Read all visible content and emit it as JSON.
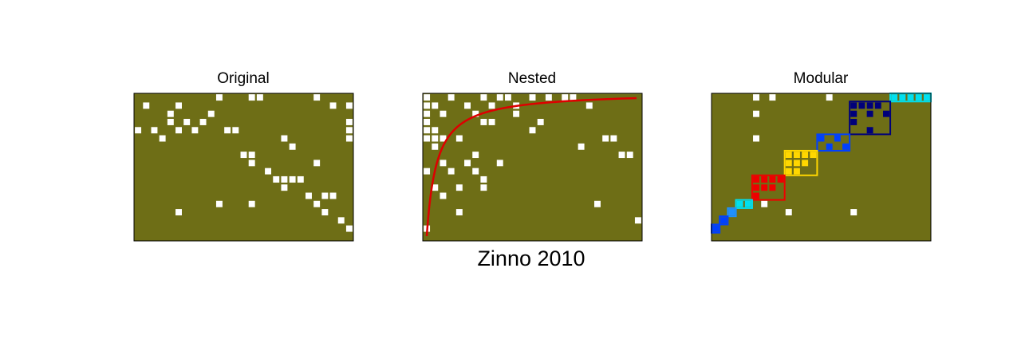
{
  "suptitle": "Zinno 2010",
  "colors": {
    "background": "#6e6e16",
    "cell": "#ffffff",
    "frame": "#000000",
    "nested_curve": "#dd0000",
    "module_cyan": "#00e0f0",
    "module_lightblue": "#1e90ff",
    "module_blue": "#0040ff",
    "module_red": "#ee0000",
    "module_yellow": "#ffd700",
    "module_navy": "#00007a"
  },
  "chart_data": [
    {
      "type": "heatmap",
      "title": "Original",
      "n_rows": 18,
      "n_cols": 27,
      "cells": [
        [
          0,
          10
        ],
        [
          0,
          14
        ],
        [
          0,
          15
        ],
        [
          0,
          22
        ],
        [
          1,
          1
        ],
        [
          1,
          5
        ],
        [
          1,
          24
        ],
        [
          1,
          26
        ],
        [
          2,
          4
        ],
        [
          2,
          9
        ],
        [
          3,
          4
        ],
        [
          3,
          6
        ],
        [
          3,
          8
        ],
        [
          3,
          26
        ],
        [
          4,
          0
        ],
        [
          4,
          2
        ],
        [
          4,
          5
        ],
        [
          4,
          7
        ],
        [
          4,
          11
        ],
        [
          4,
          12
        ],
        [
          4,
          26
        ],
        [
          5,
          3
        ],
        [
          5,
          18
        ],
        [
          5,
          26
        ],
        [
          6,
          19
        ],
        [
          7,
          13
        ],
        [
          7,
          14
        ],
        [
          8,
          22
        ],
        [
          8,
          14
        ],
        [
          9,
          16
        ],
        [
          10,
          17
        ],
        [
          10,
          18
        ],
        [
          10,
          19
        ],
        [
          10,
          20
        ],
        [
          11,
          18
        ],
        [
          12,
          21
        ],
        [
          12,
          23
        ],
        [
          12,
          24
        ],
        [
          13,
          10
        ],
        [
          13,
          14
        ],
        [
          13,
          22
        ],
        [
          14,
          5
        ],
        [
          14,
          23
        ],
        [
          15,
          25
        ],
        [
          16,
          26
        ]
      ]
    },
    {
      "type": "heatmap",
      "title": "Nested",
      "n_rows": 18,
      "n_cols": 27,
      "cells": [
        [
          0,
          0
        ],
        [
          0,
          3
        ],
        [
          0,
          7
        ],
        [
          0,
          9
        ],
        [
          0,
          10
        ],
        [
          0,
          13
        ],
        [
          0,
          15
        ],
        [
          0,
          17
        ],
        [
          0,
          18
        ],
        [
          1,
          0
        ],
        [
          1,
          1
        ],
        [
          1,
          5
        ],
        [
          1,
          8
        ],
        [
          1,
          11
        ],
        [
          1,
          20
        ],
        [
          2,
          0
        ],
        [
          2,
          2
        ],
        [
          2,
          6
        ],
        [
          2,
          11
        ],
        [
          3,
          0
        ],
        [
          3,
          7
        ],
        [
          3,
          8
        ],
        [
          3,
          14
        ],
        [
          4,
          0
        ],
        [
          4,
          1
        ],
        [
          4,
          13
        ],
        [
          5,
          0
        ],
        [
          5,
          1
        ],
        [
          5,
          2
        ],
        [
          5,
          4
        ],
        [
          5,
          22
        ],
        [
          5,
          23
        ],
        [
          6,
          1
        ],
        [
          6,
          19
        ],
        [
          7,
          6
        ],
        [
          7,
          24
        ],
        [
          7,
          25
        ],
        [
          8,
          2
        ],
        [
          8,
          5
        ],
        [
          8,
          9
        ],
        [
          9,
          0
        ],
        [
          9,
          3
        ],
        [
          9,
          6
        ],
        [
          10,
          7
        ],
        [
          11,
          1
        ],
        [
          11,
          4
        ],
        [
          11,
          7
        ],
        [
          12,
          2
        ],
        [
          13,
          21
        ],
        [
          14,
          4
        ],
        [
          15,
          26
        ],
        [
          16,
          0
        ]
      ],
      "curve": "nestedness isocline"
    },
    {
      "type": "heatmap",
      "title": "Modular",
      "n_rows": 18,
      "n_cols": 27,
      "cells": [
        [
          0,
          5
        ],
        [
          0,
          7
        ],
        [
          0,
          14
        ],
        [
          2,
          5
        ],
        [
          5,
          5
        ],
        [
          13,
          6
        ],
        [
          14,
          9
        ],
        [
          14,
          17
        ]
      ],
      "modules": [
        {
          "color": "module_cyan",
          "rows": [
            0,
            0
          ],
          "cols": [
            22,
            26
          ],
          "cells": [
            [
              0,
              22
            ],
            [
              0,
              23
            ],
            [
              0,
              24
            ],
            [
              0,
              25
            ],
            [
              0,
              26
            ]
          ]
        },
        {
          "color": "module_navy",
          "rows": [
            1,
            4
          ],
          "cols": [
            17,
            21
          ],
          "cells": [
            [
              1,
              17
            ],
            [
              1,
              18
            ],
            [
              1,
              19
            ],
            [
              1,
              20
            ],
            [
              2,
              17
            ],
            [
              2,
              19
            ],
            [
              2,
              21
            ],
            [
              3,
              17
            ],
            [
              4,
              19
            ]
          ]
        },
        {
          "color": "module_blue",
          "rows": [
            5,
            6
          ],
          "cols": [
            13,
            16
          ],
          "cells": [
            [
              5,
              13
            ],
            [
              5,
              15
            ],
            [
              6,
              14
            ],
            [
              6,
              16
            ]
          ]
        },
        {
          "color": "module_yellow",
          "rows": [
            7,
            9
          ],
          "cols": [
            9,
            12
          ],
          "cells": [
            [
              7,
              9
            ],
            [
              7,
              10
            ],
            [
              7,
              11
            ],
            [
              7,
              12
            ],
            [
              8,
              9
            ],
            [
              8,
              10
            ],
            [
              8,
              11
            ],
            [
              9,
              9
            ],
            [
              9,
              10
            ]
          ]
        },
        {
          "color": "module_red",
          "rows": [
            10,
            12
          ],
          "cols": [
            5,
            8
          ],
          "cells": [
            [
              10,
              5
            ],
            [
              10,
              6
            ],
            [
              10,
              7
            ],
            [
              10,
              8
            ],
            [
              11,
              5
            ],
            [
              11,
              6
            ],
            [
              11,
              7
            ],
            [
              12,
              5
            ]
          ]
        },
        {
          "color": "module_cyan",
          "rows": [
            13,
            13
          ],
          "cols": [
            3,
            4
          ],
          "cells": [
            [
              13,
              3
            ],
            [
              13,
              4
            ]
          ]
        },
        {
          "color": "module_lightblue",
          "rows": [
            14,
            14
          ],
          "cols": [
            2,
            2
          ],
          "cells": [
            [
              14,
              2
            ]
          ]
        },
        {
          "color": "module_blue",
          "rows": [
            15,
            15
          ],
          "cols": [
            1,
            1
          ],
          "cells": [
            [
              15,
              1
            ]
          ]
        },
        {
          "color": "module_blue",
          "rows": [
            16,
            16
          ],
          "cols": [
            0,
            0
          ],
          "cells": [
            [
              16,
              0
            ]
          ]
        }
      ]
    }
  ]
}
